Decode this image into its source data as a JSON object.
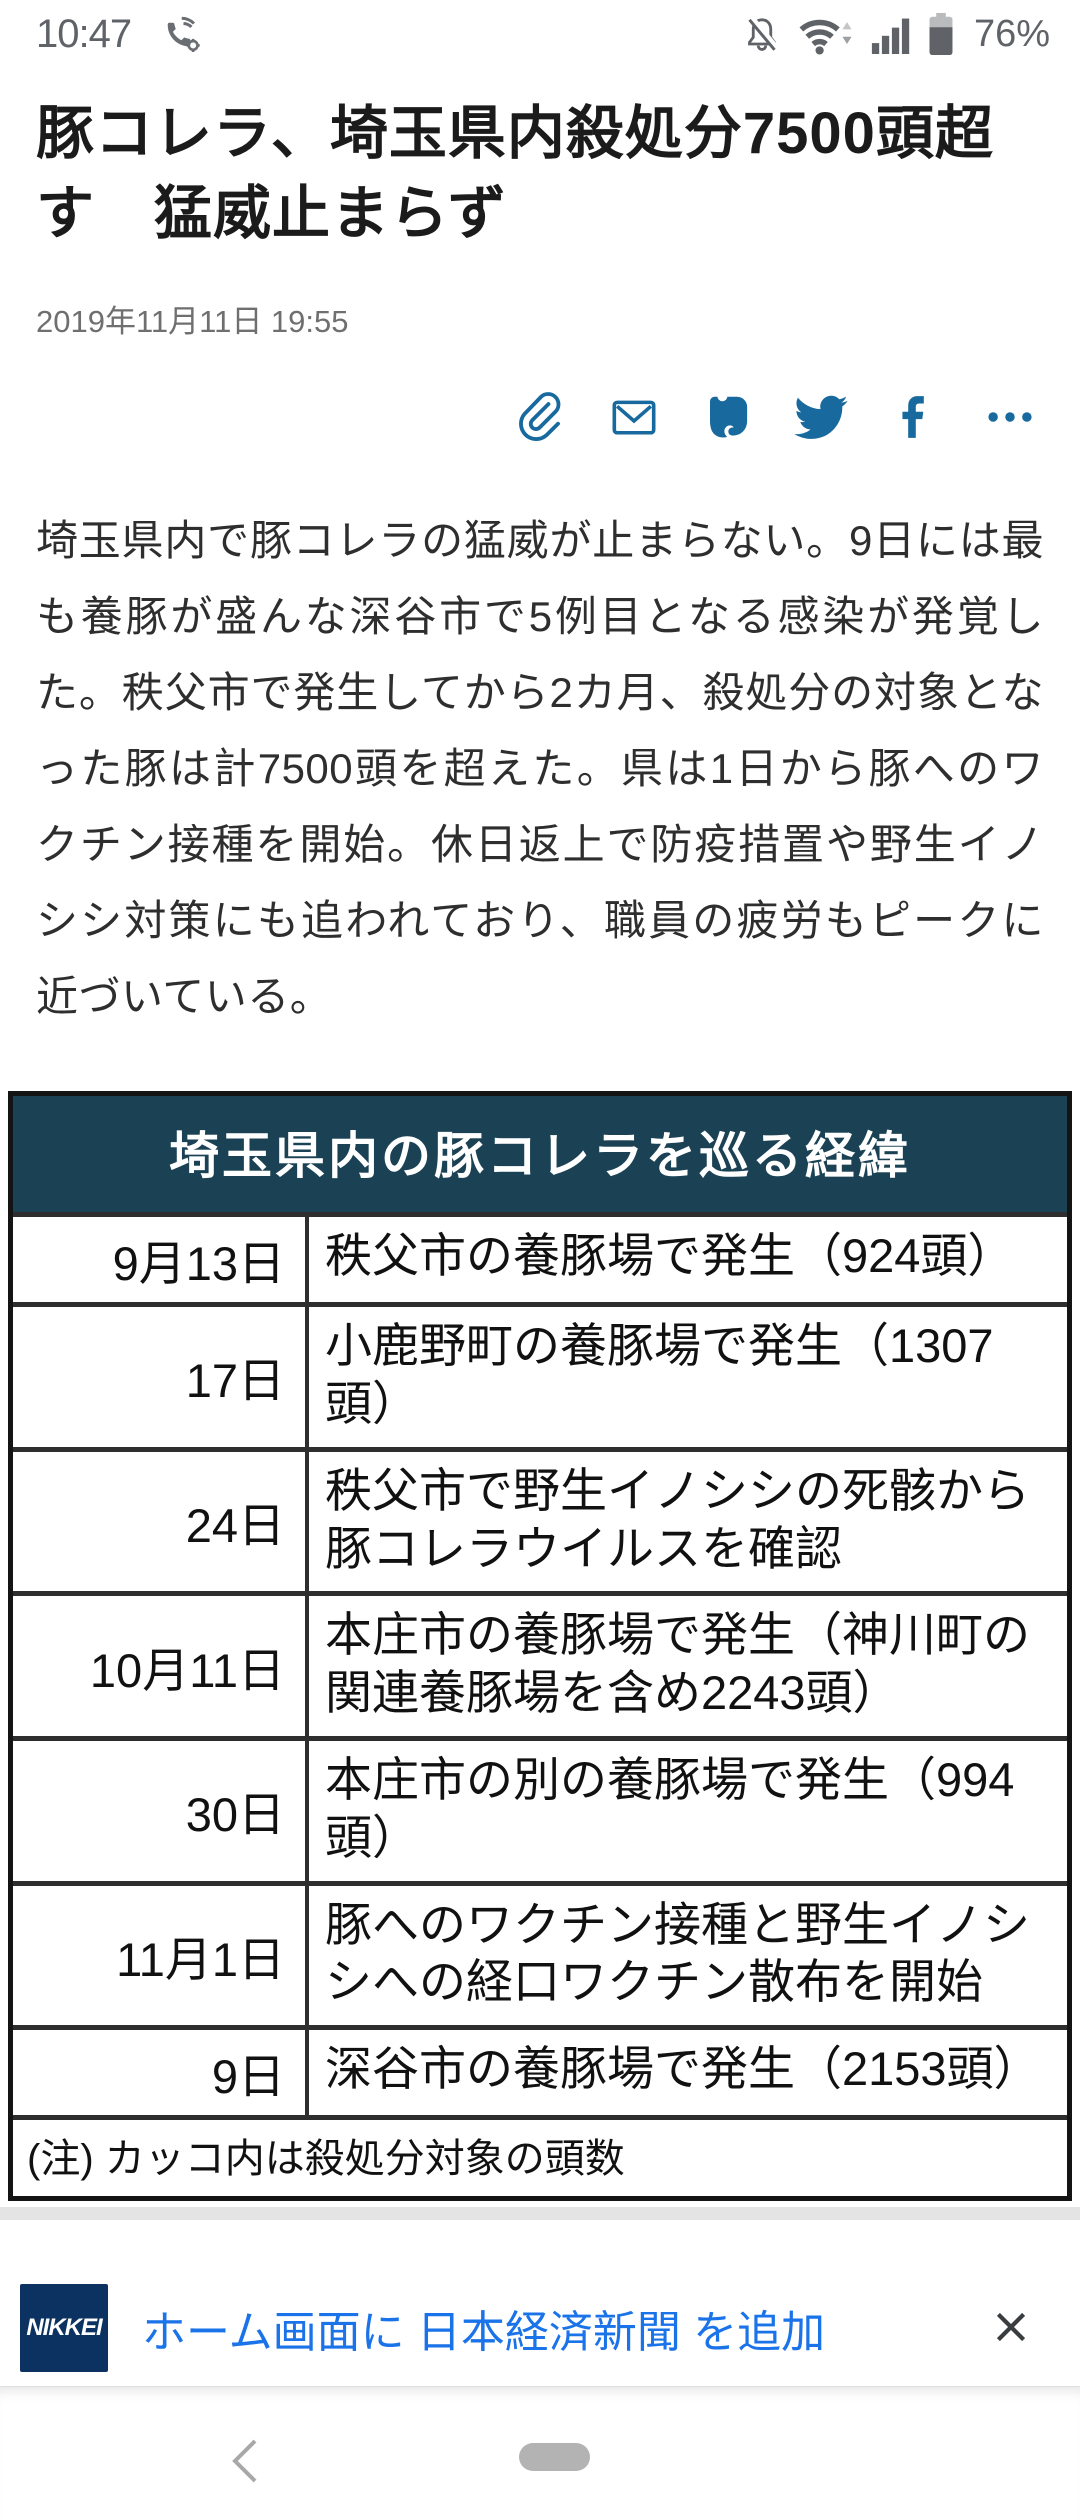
{
  "status_bar": {
    "time": "10:47",
    "battery_percent": "76%",
    "icons": [
      "wifi-calling",
      "notifications-off",
      "wifi",
      "cellular-signal",
      "battery"
    ]
  },
  "article": {
    "title": "豚コレラ、埼玉県内殺処分7500頭超す　猛威止まらず",
    "datetime": "2019年11月11日 19:55",
    "body": "埼玉県内で豚コレラの猛威が止まらない。9日には最も養豚が盛んな深谷市で5例目となる感染が発覚した。秩父市で発生してから2カ月、殺処分の対象となった豚は計7500頭を超えた。県は1日から豚へのワクチン接種を開始。休日返上で防疫措置や野生イノシシ対策にも追われており、職員の疲労もピークに近づいている。"
  },
  "share_toolbar": {
    "icons": [
      "link",
      "email",
      "evernote",
      "twitter",
      "facebook",
      "more"
    ]
  },
  "table": {
    "title": "埼玉県内の豚コレラを巡る経緯",
    "rows": [
      {
        "date": "9月13日",
        "event": "秩父市の養豚場で発生（924頭）"
      },
      {
        "date": "17日",
        "event": "小鹿野町の養豚場で発生（1307頭）"
      },
      {
        "date": "24日",
        "event": "秩父市で野生イノシシの死骸から豚コレラウイルスを確認"
      },
      {
        "date": "10月11日",
        "event": "本庄市の養豚場で発生（神川町の関連養豚場を含め2243頭）"
      },
      {
        "date": "30日",
        "event": "本庄市の別の養豚場で発生（994頭）"
      },
      {
        "date": "11月1日",
        "event": "豚へのワクチン接種と野生イノシシへの経口ワクチン散布を開始"
      },
      {
        "date": "9日",
        "event": "深谷市の養豚場で発生（2153頭）"
      }
    ],
    "note": "(注) カッコ内は殺処分対象の頭数"
  },
  "banner": {
    "logo_text": "NIKKEI",
    "message": "ホーム画面に 日本経済新聞 を追加"
  },
  "colors": {
    "share_icon": "#17699e",
    "table_header_bg": "#1b4254",
    "banner_link": "#1a73e8",
    "logo_bg": "#0c3262"
  }
}
